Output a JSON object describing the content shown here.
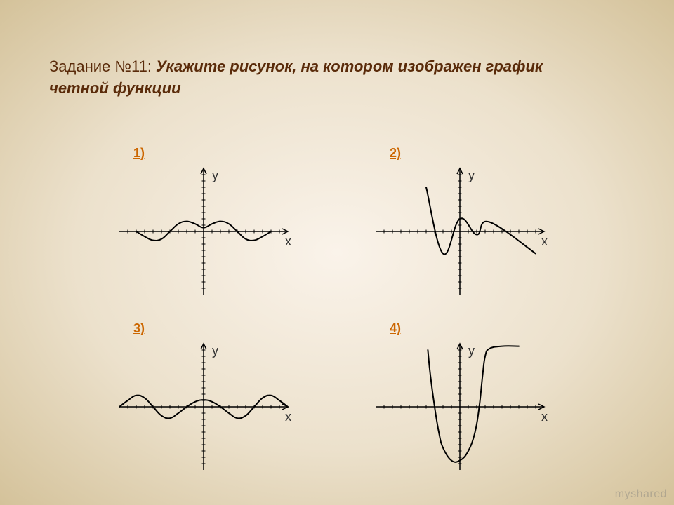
{
  "title": {
    "lead": "Задание №11: ",
    "bold": "Укажите рисунок, на котором изображен график четной функции",
    "color": "#5a2b0a",
    "lead_fontsize": 22,
    "bold_fontsize": 24
  },
  "label_color": "#cc6600",
  "axis": {
    "color": "#000000",
    "tick_color": "#000000",
    "stroke_width": 1.5,
    "tick_len": 5,
    "x_range": [
      -10,
      10
    ],
    "y_range": [
      -10,
      10
    ],
    "tick_step": 1,
    "x_label": "х",
    "y_label": "у",
    "label_fontsize": 18,
    "label_color": "#333333"
  },
  "curve_style": {
    "color": "#000000",
    "stroke_width": 2,
    "fill": "none"
  },
  "plots": [
    {
      "label": "1)",
      "type": "line",
      "points": [
        [
          -8,
          0
        ],
        [
          -7,
          -0.8
        ],
        [
          -6,
          -1.4
        ],
        [
          -5,
          -1.2
        ],
        [
          -4,
          0
        ],
        [
          -3,
          1.2
        ],
        [
          -2,
          1.6
        ],
        [
          -1,
          1.2
        ],
        [
          0,
          0.6
        ],
        [
          1,
          1.2
        ],
        [
          2,
          1.6
        ],
        [
          3,
          1.2
        ],
        [
          4,
          0
        ],
        [
          5,
          -1.2
        ],
        [
          6,
          -1.4
        ],
        [
          7,
          -0.8
        ],
        [
          8,
          0
        ]
      ]
    },
    {
      "label": "2)",
      "type": "line",
      "points": [
        [
          -4,
          7
        ],
        [
          -2,
          -3.5
        ],
        [
          0,
          2
        ],
        [
          2,
          -0.5
        ],
        [
          3.5,
          1.5
        ],
        [
          9,
          -3.5
        ]
      ]
    },
    {
      "label": "3)",
      "type": "line",
      "points": [
        [
          -10,
          0
        ],
        [
          -9,
          1.0
        ],
        [
          -8,
          1.8
        ],
        [
          -7,
          1.4
        ],
        [
          -6,
          0
        ],
        [
          -5,
          -1.4
        ],
        [
          -4,
          -1.8
        ],
        [
          -3,
          -1.0
        ],
        [
          -2,
          0
        ],
        [
          -1,
          0.8
        ],
        [
          0,
          1.1
        ],
        [
          1,
          0.8
        ],
        [
          2,
          0
        ],
        [
          3,
          -1.0
        ],
        [
          4,
          -1.8
        ],
        [
          5,
          -1.4
        ],
        [
          6,
          0
        ],
        [
          7,
          1.4
        ],
        [
          8,
          1.8
        ],
        [
          9,
          1.0
        ],
        [
          10,
          0
        ]
      ]
    },
    {
      "label": "4)",
      "type": "line",
      "points": [
        [
          -3.8,
          9
        ],
        [
          -3.5,
          5
        ],
        [
          -3,
          0
        ],
        [
          -2.5,
          -4
        ],
        [
          -2,
          -6.5
        ],
        [
          -1,
          -8.5
        ],
        [
          0,
          -8.5
        ],
        [
          1,
          -7
        ],
        [
          1.8,
          -4
        ],
        [
          2.3,
          0
        ],
        [
          2.7,
          5
        ],
        [
          3,
          8
        ],
        [
          3.5,
          9.2
        ],
        [
          5,
          9.6
        ],
        [
          7,
          9.6
        ]
      ]
    }
  ],
  "watermark": "myshared"
}
